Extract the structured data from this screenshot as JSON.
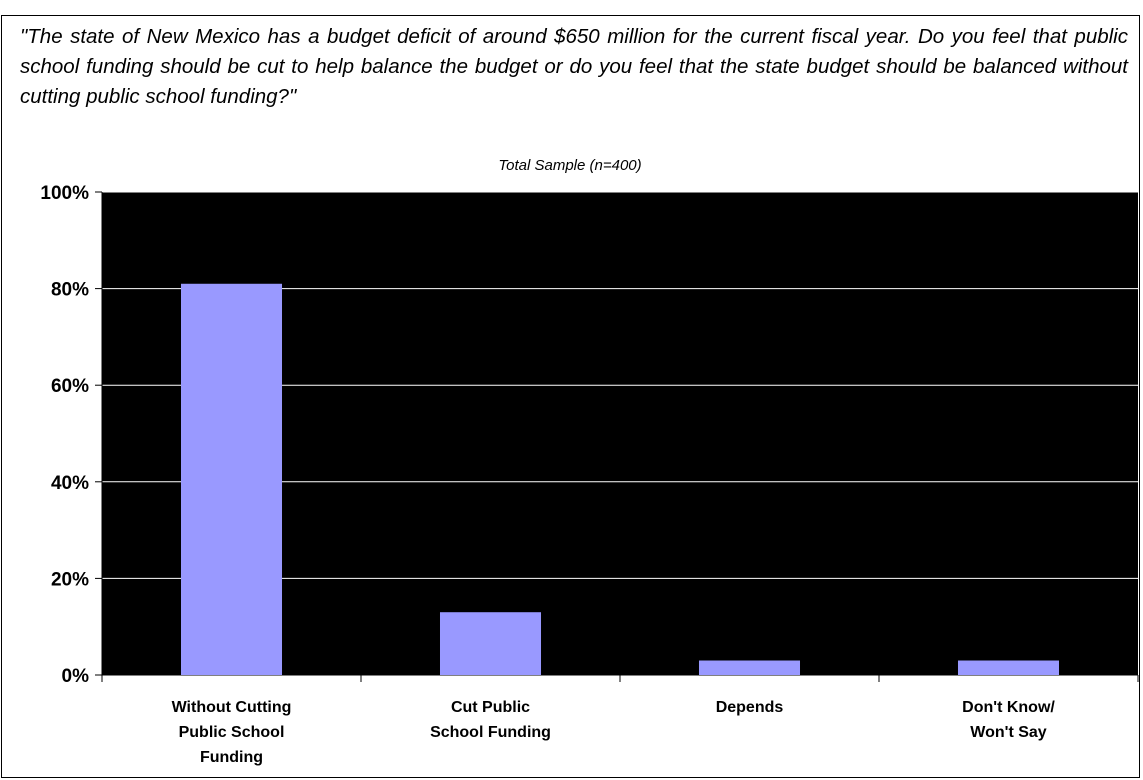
{
  "question": "\"The state of New Mexico has a budget deficit of around $650 million for the current fiscal year.  Do you feel that public school funding should be cut to help balance the budget or do you feel that the state budget should be balanced without cutting public school funding?\"",
  "chart_data": {
    "type": "bar",
    "subtitle": "Total Sample (n=400)",
    "categories": [
      [
        "Without Cutting",
        "Public School",
        "Funding"
      ],
      [
        "Cut Public",
        "School Funding"
      ],
      [
        "Depends"
      ],
      [
        "Don't Know/",
        "Won't Say"
      ]
    ],
    "values": [
      81,
      13,
      3,
      3
    ],
    "ylim": [
      0,
      100
    ],
    "yticks": [
      0,
      20,
      40,
      60,
      80,
      100
    ],
    "ytick_labels": [
      "0%",
      "20%",
      "40%",
      "60%",
      "80%",
      "100%"
    ],
    "bar_color": "#9999ff",
    "plot_background": "#000000",
    "gridline_color": "#ffffff",
    "grid": true
  }
}
